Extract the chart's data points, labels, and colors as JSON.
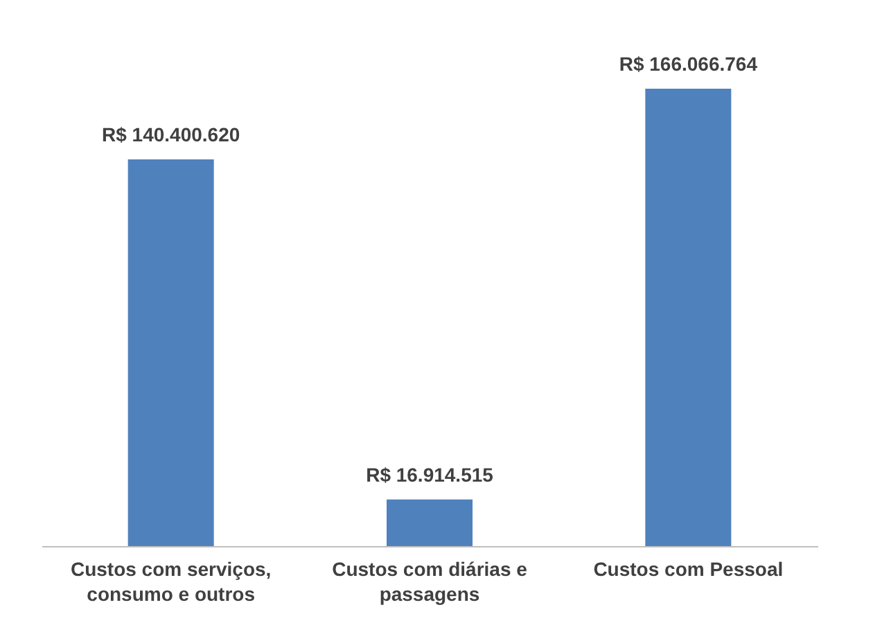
{
  "chart_data": {
    "type": "bar",
    "categories": [
      "Custos com serviços, consumo e outros",
      "Custos com diárias e passagens",
      "Custos com Pessoal"
    ],
    "values": [
      140400620,
      16914515,
      166066764
    ],
    "value_labels": [
      "R$ 140.400.620",
      "R$ 16.914.515",
      "R$ 166.066.764"
    ],
    "color": "#4f81bd",
    "grid": false
  }
}
